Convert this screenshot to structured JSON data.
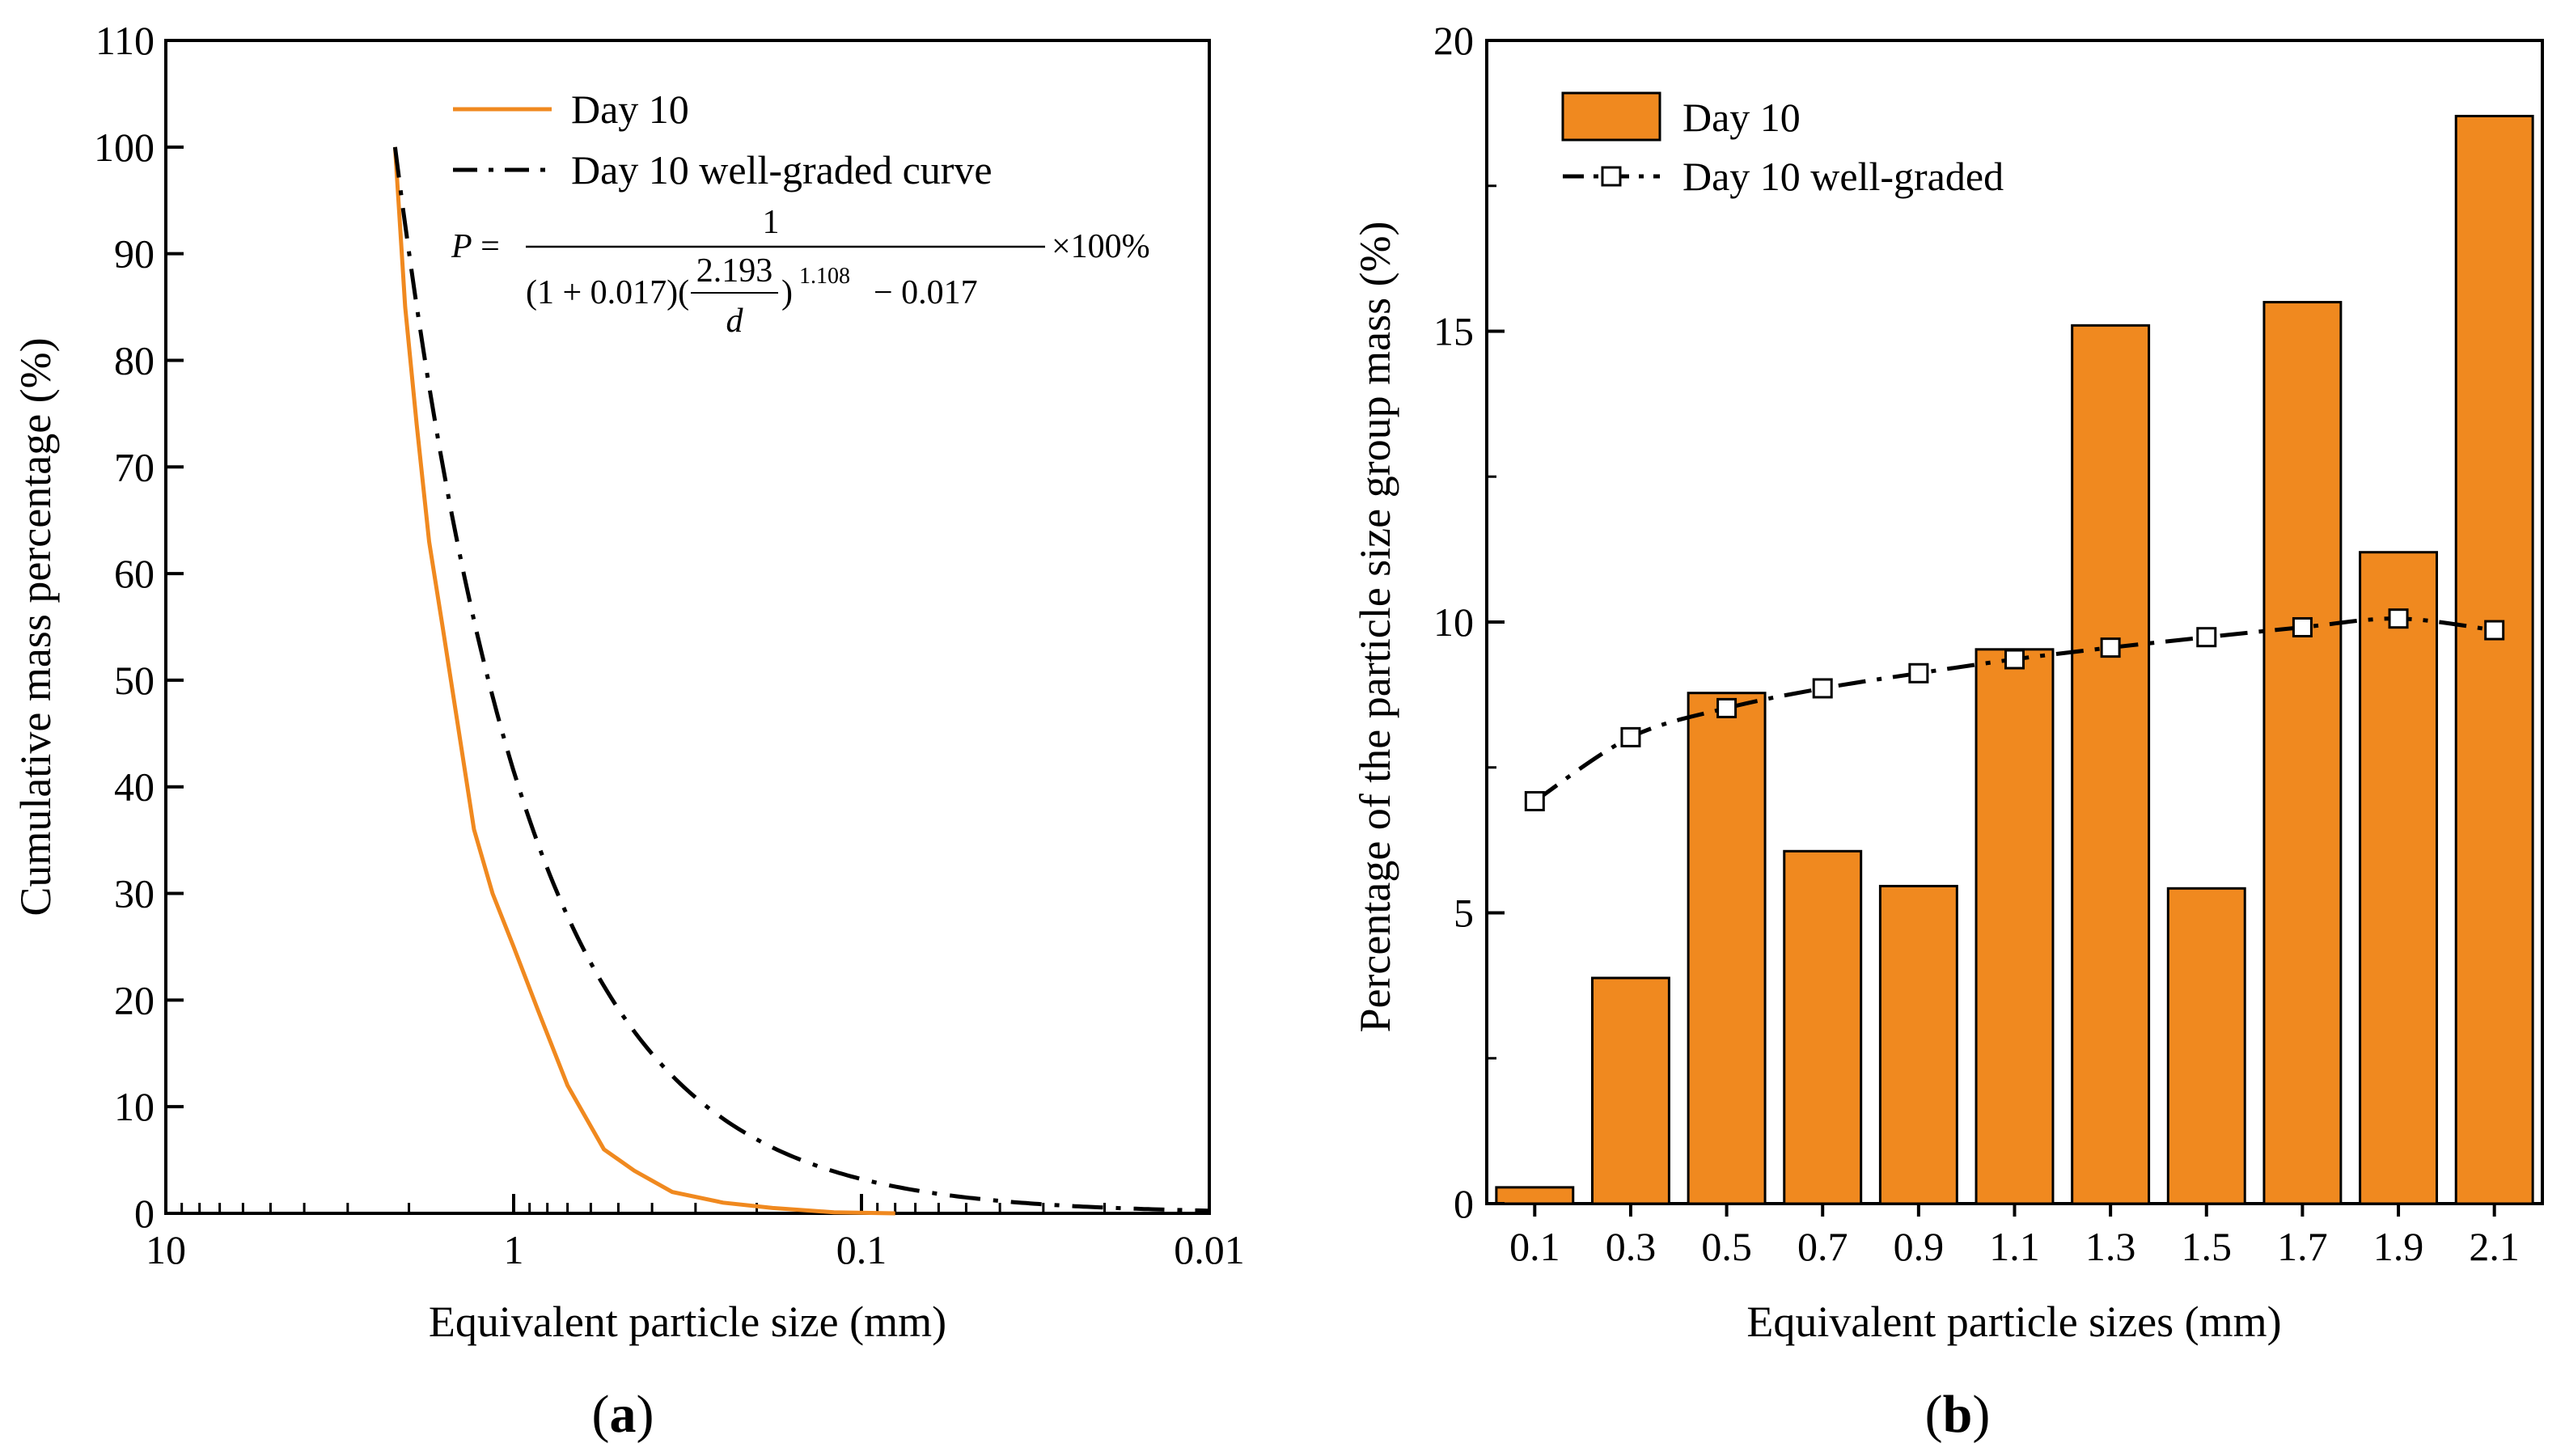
{
  "chart_data": [
    {
      "id": "a",
      "type": "line",
      "panel_label": "a",
      "xscale": "log",
      "xaxis_reversed": true,
      "xlim": [
        10,
        0.01
      ],
      "ylim": [
        0,
        110
      ],
      "xticks": [
        10,
        1,
        0.1,
        0.01
      ],
      "xtick_labels": [
        "10",
        "1",
        "0.1",
        "0.01"
      ],
      "yticks": [
        0,
        10,
        20,
        30,
        40,
        50,
        60,
        70,
        80,
        90,
        100,
        110
      ],
      "ytick_labels": [
        "0",
        "10",
        "20",
        "30",
        "40",
        "50",
        "60",
        "70",
        "80",
        "90",
        "100",
        "110"
      ],
      "xlabel": "Equivalent particle size (mm)",
      "ylabel": "Cumulative mass percentage (%)",
      "legend_position": "top-right",
      "series": [
        {
          "name": "Day 10",
          "color": "#F0891F",
          "style": "solid",
          "x": [
            2.193,
            2.05,
            1.9,
            1.75,
            1.6,
            1.45,
            1.3,
            1.15,
            1.0,
            0.85,
            0.7,
            0.55,
            0.45,
            0.35,
            0.25,
            0.18,
            0.12,
            0.08
          ],
          "y": [
            100,
            85,
            74,
            63,
            55,
            46,
            36,
            30,
            25,
            19,
            12,
            6,
            4,
            2,
            1,
            0.5,
            0.1,
            0
          ]
        },
        {
          "name": "Day 10 well-graded curve",
          "color": "#000000",
          "style": "dashdot",
          "formula": {
            "c": 0.017,
            "dmax": 2.193,
            "n": 1.108
          },
          "x_range": [
            2.193,
            0.01
          ]
        }
      ],
      "formula_text": {
        "lhs": "P =",
        "numerator": "1",
        "left": "(1 + 0.017)(",
        "frac_num": "2.193",
        "frac_den": "d",
        "right": ")",
        "exponent": "1.108",
        "tail": " − 0.017",
        "suffix": "×100%"
      }
    },
    {
      "id": "b",
      "type": "bar",
      "panel_label": "b",
      "categories": [
        "0.1",
        "0.3",
        "0.5",
        "0.7",
        "0.9",
        "1.1",
        "1.3",
        "1.5",
        "1.7",
        "1.9",
        "2.1"
      ],
      "ylim": [
        0,
        20
      ],
      "yticks": [
        0,
        5,
        10,
        15,
        20
      ],
      "ytick_labels": [
        "0",
        "5",
        "10",
        "15",
        "20"
      ],
      "xlabel": "Equivalent particle sizes (mm)",
      "ylabel": "Percentage of the particle size group mass (%)",
      "legend_position": "top-left",
      "series": [
        {
          "name": "Day 10",
          "kind": "bar",
          "color": "#F0891F",
          "values": [
            0.28,
            3.88,
            8.78,
            6.06,
            5.46,
            9.53,
            15.1,
            5.42,
            15.5,
            11.2,
            18.7
          ]
        },
        {
          "name": "Day 10 well-graded",
          "kind": "line",
          "color": "#000000",
          "style": "dashdot",
          "marker": "square-open",
          "values": [
            6.92,
            8.02,
            8.52,
            8.86,
            9.12,
            9.36,
            9.56,
            9.74,
            9.91,
            10.06,
            9.86
          ]
        }
      ]
    }
  ]
}
